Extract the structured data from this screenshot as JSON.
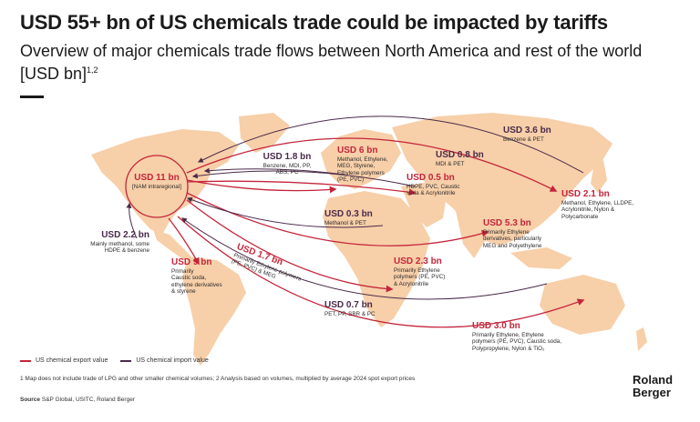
{
  "title": "USD 55+ bn of US chemicals trade could be impacted by tariffs",
  "subtitle": "Overview of major chemicals trade flows between North America and rest of the world [USD bn]",
  "subtitle_sup": "1,2",
  "colors": {
    "export": "#c4253a",
    "import": "#4a2a4a",
    "land": "#f7cfa9",
    "bg": "#ffffff"
  },
  "flows": {
    "nam": {
      "value": "USD 11 bn",
      "desc": "[NAM intraregional]"
    },
    "mex_import": {
      "value": "USD 2.2 bn",
      "desc": [
        "Mainly methanol, some",
        "HDPE & benzene"
      ]
    },
    "latam_export": {
      "value": "USD 9 bn",
      "desc": [
        "Primarily",
        "Caustic soda,",
        "ethylene derivatives",
        "& styrene"
      ]
    },
    "europe_import": {
      "value": "USD 1.8 bn",
      "desc": [
        "Benzene, MDI, PP,",
        "ABS, PC"
      ]
    },
    "europe_export": {
      "value": "USD 6 bn",
      "desc": [
        "Methanol, Ethylene,",
        "MEG, Styrene,",
        "Ethylene polymers",
        "(PE, PVC)"
      ]
    },
    "mideast_import": {
      "value": "USD 0.8 bn",
      "desc": [
        "MDI & PET"
      ]
    },
    "mideast_export": {
      "value": "USD 0.5 bn",
      "desc": [
        "HDPE, PVC, Caustic",
        "soda & Acrylonitrile"
      ]
    },
    "asia_import": {
      "value": "USD 3.6 bn",
      "desc": [
        "Benzene & PET"
      ]
    },
    "asia_export": {
      "value": "USD 2.1 bn",
      "desc": [
        "Methanol, Ethylene, LLDPE,",
        "Acrylonitrile, Nylon &",
        "Polycarbonate"
      ]
    },
    "africa_import": {
      "value": "USD 0.3 bn",
      "desc": [
        "Methanol & PET"
      ]
    },
    "sea_export": {
      "value": "USD 5.3 bn",
      "desc": [
        "Primarily Ethylene",
        "derivatives, particularly",
        "MEG and Polyethylene"
      ]
    },
    "safr_export_path": {
      "value": "USD 1.7 bn",
      "desc": [
        "Primarily Ethylene polymers",
        "(PE, PVC) & MEG"
      ]
    },
    "africa_export": {
      "value": "USD 2.3 bn",
      "desc": [
        "Primarily Ethylene",
        "polymers (PE, PVC)",
        "& Acrylonitrile"
      ]
    },
    "oceania_import": {
      "value": "USD 0.7 bn",
      "desc": [
        "PET, PP, SBR & PC"
      ]
    },
    "oceania_export": {
      "value": "USD 3.0 bn",
      "desc": [
        "Primarily Ethylene, Ethylene",
        "polymers (PE, PVC), Caustic soda,",
        "Polypropylene, Nylon & TiO₂"
      ]
    }
  },
  "legend": {
    "export": "US chemical export value",
    "import": "US chemical import value"
  },
  "footnote": "1 Map does not include trade of LPG and other smaller chemical volumes;  2 Analysis based on volumes, multiplied by average 2024 spot export prices",
  "source_label": "Source",
  "source_text": "S&P Global, USITC, Roland Berger",
  "logo": {
    "line1": "Roland",
    "line2": "Berger"
  }
}
